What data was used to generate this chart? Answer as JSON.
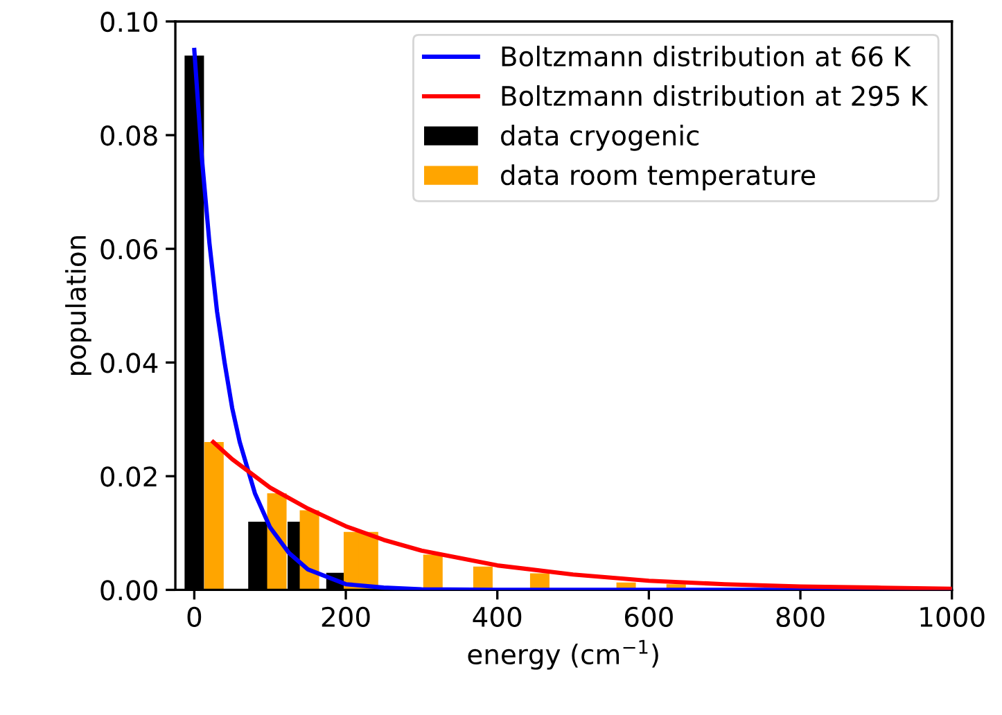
{
  "chart_data": {
    "type": "bar",
    "xlabel": "energy (cm$^{−1}$)",
    "ylabel": "population",
    "xlim": [
      -25,
      1000
    ],
    "xticks": [
      0,
      200,
      400,
      600,
      800,
      1000
    ],
    "ylim": [
      0,
      0.1
    ],
    "yticks": [
      {
        "value": 0,
        "label": "0.00"
      },
      {
        "value": 0.02,
        "label": "0.02"
      },
      {
        "value": 0.04,
        "label": "0.04"
      },
      {
        "value": 0.06,
        "label": "0.06"
      },
      {
        "value": 0.08,
        "label": "0.08"
      },
      {
        "value": 0.1,
        "label": "0.10"
      }
    ],
    "legend": "top right",
    "grid": false,
    "series": [
      {
        "name": "Boltzmann distribution at 66 K",
        "type": "line",
        "color": "#0000ff",
        "x": [
          0,
          10,
          20,
          30,
          40,
          50,
          60,
          80,
          100,
          125,
          150,
          200,
          250,
          300,
          400,
          600,
          1000
        ],
        "values": [
          0.095,
          0.076,
          0.061,
          0.049,
          0.04,
          0.032,
          0.026,
          0.017,
          0.011,
          0.0065,
          0.0036,
          0.001,
          0.0004,
          0.0001,
          0,
          0,
          0
        ]
      },
      {
        "name": "Boltzmann distribution at 295 K",
        "type": "line",
        "color": "#ff0000",
        "x": [
          25,
          50,
          100,
          150,
          200,
          250,
          300,
          400,
          500,
          600,
          700,
          800,
          900,
          1000
        ],
        "values": [
          0.026,
          0.023,
          0.018,
          0.0143,
          0.0112,
          0.0088,
          0.0069,
          0.0043,
          0.0027,
          0.0016,
          0.001,
          0.0006,
          0.0004,
          0.0002
        ]
      },
      {
        "name": "data cryogenic",
        "color": "#000000",
        "x": [
          0,
          84,
          136,
          187
        ],
        "values": [
          0.094,
          0.012,
          0.012,
          0.003
        ]
      },
      {
        "name": "data room temperature",
        "color": "#ffa500",
        "x": [
          26,
          109,
          152,
          210,
          230,
          315,
          381,
          456,
          570,
          636
        ],
        "values": [
          0.026,
          0.017,
          0.014,
          0.0102,
          0.0102,
          0.0062,
          0.0041,
          0.0029,
          0.0013,
          0.001
        ]
      }
    ]
  }
}
